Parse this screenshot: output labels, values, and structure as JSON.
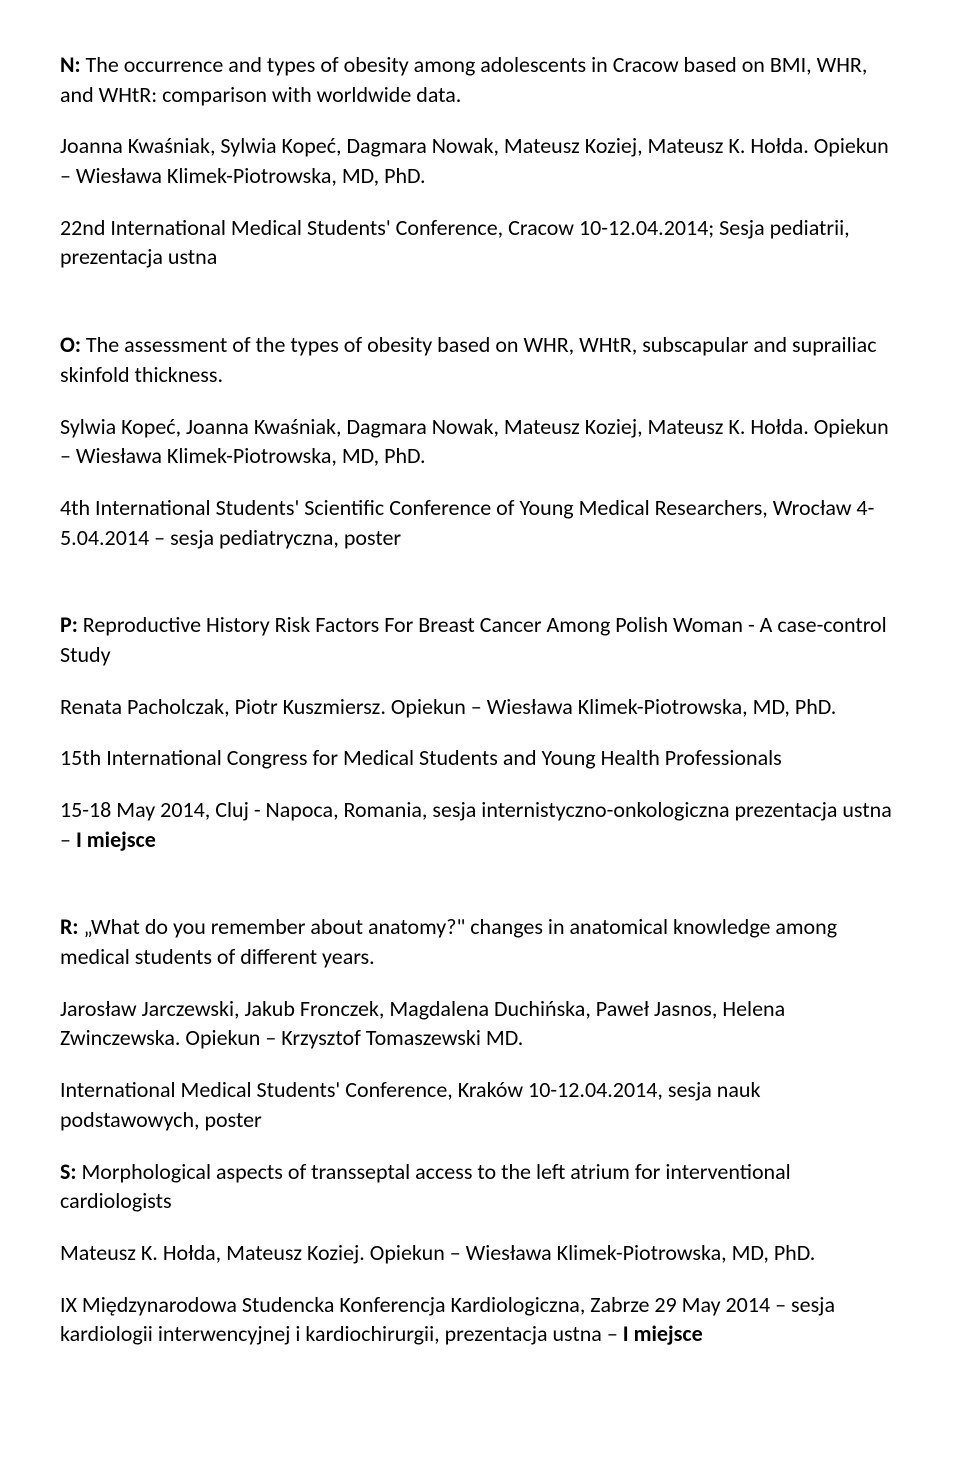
{
  "entries": {
    "n": {
      "label": "N:",
      "title": " The occurrence and types of obesity among adolescents in Cracow based on BMI, WHR, and WHtR: comparison with worldwide data.",
      "authors": "Joanna Kwaśniak, Sylwia Kopeć, Dagmara Nowak, Mateusz Koziej, Mateusz K. Hołda. Opiekun – Wiesława Klimek-Piotrowska, MD, PhD.",
      "venue": "22nd International Medical Students' Conference, Cracow 10-12.04.2014; Sesja pediatrii, prezentacja ustna"
    },
    "o": {
      "label": "O:",
      "title": " The assessment of the types of obesity based on WHR, WHtR, subscapular and suprailiac skinfold thickness.",
      "authors": "Sylwia Kopeć, Joanna Kwaśniak, Dagmara Nowak, Mateusz Koziej, Mateusz K. Hołda. Opiekun – Wiesława Klimek-Piotrowska, MD, PhD.",
      "venue": "4th International Students' Scientific Conference of Young Medical Researchers, Wrocław 4-5.04.2014 – sesja pediatryczna, poster"
    },
    "p": {
      "label": "P:",
      "title": " Reproductive History Risk Factors For Breast Cancer Among Polish Woman - A case-control Study",
      "authors": "Renata Pacholczak, Piotr Kuszmiersz. Opiekun – Wiesława Klimek-Piotrowska, MD, PhD.",
      "venue": "15th International Congress for Medical Students and Young Health Professionals",
      "note_pre": "15-18 May 2014, Cluj - Napoca, Romania, sesja internistyczno-onkologiczna prezentacja ustna – ",
      "note_bold": "I miejsce"
    },
    "r": {
      "label": "R:",
      "title": " „What do you remember about anatomy?\" changes in anatomical knowledge among medical students of different years.",
      "authors": "Jarosław Jarczewski, Jakub Fronczek, Magdalena Duchińska, Paweł Jasnos, Helena Zwinczewska. Opiekun – Krzysztof Tomaszewski MD.",
      "venue": "International Medical Students' Conference, Kraków 10-12.04.2014, sesja nauk podstawowych, poster"
    },
    "s": {
      "label": "S:",
      "title": " Morphological aspects of transseptal access to the left atrium for interventional cardiologists",
      "authors": "Mateusz K. Hołda, Mateusz Koziej. Opiekun – Wiesława Klimek-Piotrowska, MD, PhD.",
      "note_pre": "IX Międzynarodowa Studencka Konferencja Kardiologiczna, Zabrze 29 May 2014 – sesja kardiologii interwencyjnej i kardiochirurgii, prezentacja ustna – ",
      "note_bold": "I miejsce"
    }
  }
}
